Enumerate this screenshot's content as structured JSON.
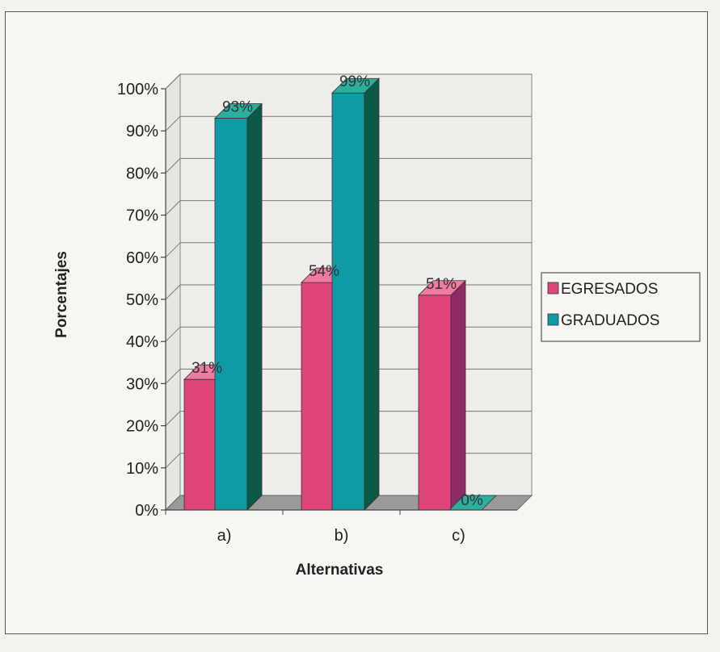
{
  "chart_data": {
    "type": "bar",
    "categories": [
      "a)",
      "b)",
      "c)"
    ],
    "series": [
      {
        "name": "EGRESADOS",
        "values": [
          31,
          54,
          51
        ],
        "labels": [
          "31%",
          "54%",
          "51%"
        ],
        "color": "#e0457a",
        "side_color": "#8e2a66",
        "top_color": "#f07aa0"
      },
      {
        "name": "GRADUADOS",
        "values": [
          93,
          99,
          0
        ],
        "labels": [
          "93%",
          "99%",
          "0%"
        ],
        "color": "#0f9aa6",
        "side_color": "#0b5a48",
        "top_color": "#2bb0a0"
      }
    ],
    "xlabel": "Alternativas",
    "ylabel": "Porcentajes",
    "ylim": [
      0,
      100
    ],
    "yticks": [
      "0%",
      "10%",
      "20%",
      "30%",
      "40%",
      "50%",
      "60%",
      "70%",
      "80%",
      "90%",
      "100%"
    ],
    "grid": true,
    "legend": "right"
  }
}
